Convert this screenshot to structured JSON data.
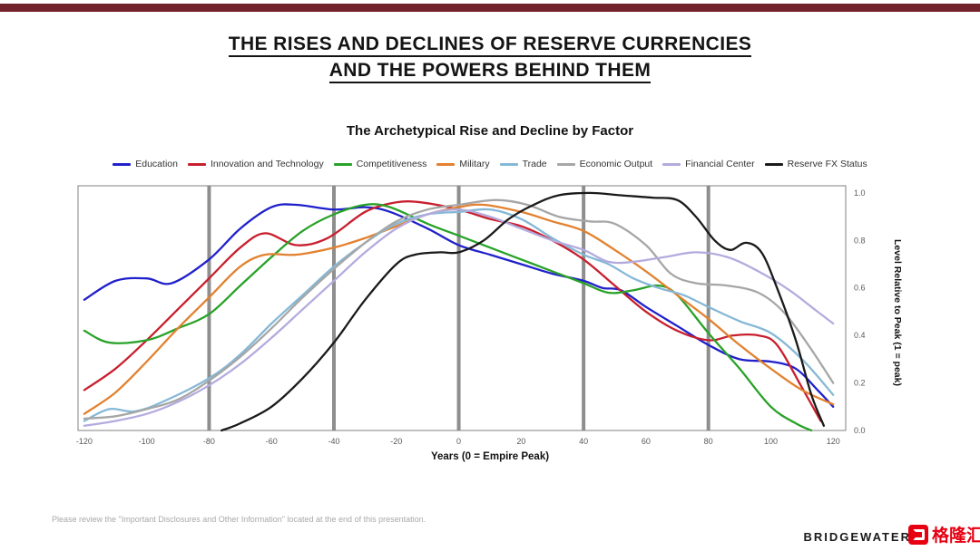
{
  "slide": {
    "title_line1": "THE RISES AND DECLINES OF RESERVE CURRENCIES",
    "title_line2": "AND THE POWERS BEHIND THEM",
    "footer": "Please review the \"Important Disclosures and Other Information\" located at the end of this presentation.",
    "brand": "BRIDGEWATER",
    "watermark": "格隆汇"
  },
  "chart_data": {
    "type": "line",
    "title": "The Archetypical Rise and Decline by Factor",
    "xlabel": "Years (0 = Empire Peak)",
    "ylabel": "Level Relative to Peak (1 = peak)",
    "xlim": [
      -122,
      124
    ],
    "ylim": [
      0,
      1.03
    ],
    "x_ticks": [
      -120,
      -100,
      -80,
      -60,
      -40,
      -20,
      0,
      20,
      40,
      60,
      80,
      100,
      120
    ],
    "y_ticks": [
      0.0,
      0.2,
      0.4,
      0.6,
      0.8,
      1.0
    ],
    "y_tick_labels": [
      "0.0",
      "0.2",
      "0.4",
      "0.6",
      "0.8",
      "1.0"
    ],
    "gridlines_x": [
      -80,
      -40,
      0,
      40,
      80
    ],
    "grid": "vertical-only",
    "legend_position": "top",
    "colors": {
      "gridline": "#8e8e8e",
      "plot_border": "#828282"
    },
    "series": [
      {
        "name": "Education",
        "color": "#2020cc",
        "points": [
          [
            -120,
            0.55
          ],
          [
            -110,
            0.63
          ],
          [
            -100,
            0.64
          ],
          [
            -92,
            0.62
          ],
          [
            -80,
            0.72
          ],
          [
            -70,
            0.85
          ],
          [
            -60,
            0.94
          ],
          [
            -52,
            0.95
          ],
          [
            -40,
            0.93
          ],
          [
            -30,
            0.94
          ],
          [
            -22,
            0.92
          ],
          [
            -10,
            0.85
          ],
          [
            0,
            0.78
          ],
          [
            10,
            0.74
          ],
          [
            20,
            0.7
          ],
          [
            30,
            0.66
          ],
          [
            40,
            0.63
          ],
          [
            46,
            0.6
          ],
          [
            52,
            0.59
          ],
          [
            60,
            0.52
          ],
          [
            70,
            0.44
          ],
          [
            80,
            0.36
          ],
          [
            90,
            0.3
          ],
          [
            100,
            0.29
          ],
          [
            108,
            0.26
          ],
          [
            115,
            0.17
          ],
          [
            120,
            0.1
          ]
        ]
      },
      {
        "name": "Innovation and Technology",
        "color": "#c81f2e",
        "points": [
          [
            -120,
            0.17
          ],
          [
            -110,
            0.26
          ],
          [
            -100,
            0.38
          ],
          [
            -90,
            0.51
          ],
          [
            -80,
            0.64
          ],
          [
            -70,
            0.77
          ],
          [
            -62,
            0.83
          ],
          [
            -52,
            0.78
          ],
          [
            -42,
            0.81
          ],
          [
            -30,
            0.92
          ],
          [
            -20,
            0.96
          ],
          [
            -12,
            0.96
          ],
          [
            0,
            0.93
          ],
          [
            10,
            0.89
          ],
          [
            20,
            0.86
          ],
          [
            30,
            0.8
          ],
          [
            40,
            0.72
          ],
          [
            50,
            0.61
          ],
          [
            60,
            0.5
          ],
          [
            70,
            0.42
          ],
          [
            80,
            0.38
          ],
          [
            88,
            0.4
          ],
          [
            96,
            0.4
          ],
          [
            102,
            0.36
          ],
          [
            110,
            0.18
          ],
          [
            116,
            0.04
          ]
        ]
      },
      {
        "name": "Competitiveness",
        "color": "#28a228",
        "points": [
          [
            -120,
            0.42
          ],
          [
            -112,
            0.37
          ],
          [
            -100,
            0.38
          ],
          [
            -90,
            0.43
          ],
          [
            -80,
            0.49
          ],
          [
            -70,
            0.61
          ],
          [
            -60,
            0.73
          ],
          [
            -50,
            0.84
          ],
          [
            -40,
            0.91
          ],
          [
            -30,
            0.95
          ],
          [
            -22,
            0.94
          ],
          [
            -10,
            0.87
          ],
          [
            0,
            0.82
          ],
          [
            10,
            0.77
          ],
          [
            20,
            0.72
          ],
          [
            30,
            0.67
          ],
          [
            40,
            0.62
          ],
          [
            48,
            0.58
          ],
          [
            56,
            0.59
          ],
          [
            64,
            0.61
          ],
          [
            70,
            0.57
          ],
          [
            80,
            0.41
          ],
          [
            90,
            0.26
          ],
          [
            100,
            0.1
          ],
          [
            108,
            0.03
          ],
          [
            113,
            0.0
          ]
        ]
      },
      {
        "name": "Military",
        "color": "#e2812f",
        "points": [
          [
            -120,
            0.07
          ],
          [
            -110,
            0.16
          ],
          [
            -100,
            0.29
          ],
          [
            -90,
            0.43
          ],
          [
            -80,
            0.56
          ],
          [
            -70,
            0.69
          ],
          [
            -62,
            0.74
          ],
          [
            -52,
            0.74
          ],
          [
            -40,
            0.77
          ],
          [
            -30,
            0.81
          ],
          [
            -20,
            0.86
          ],
          [
            -10,
            0.91
          ],
          [
            0,
            0.94
          ],
          [
            8,
            0.95
          ],
          [
            20,
            0.92
          ],
          [
            30,
            0.88
          ],
          [
            40,
            0.84
          ],
          [
            50,
            0.76
          ],
          [
            60,
            0.67
          ],
          [
            70,
            0.57
          ],
          [
            80,
            0.47
          ],
          [
            90,
            0.36
          ],
          [
            100,
            0.26
          ],
          [
            110,
            0.17
          ],
          [
            120,
            0.11
          ]
        ]
      },
      {
        "name": "Trade",
        "color": "#85b8d6",
        "points": [
          [
            -120,
            0.04
          ],
          [
            -112,
            0.09
          ],
          [
            -104,
            0.08
          ],
          [
            -95,
            0.12
          ],
          [
            -80,
            0.22
          ],
          [
            -70,
            0.32
          ],
          [
            -60,
            0.45
          ],
          [
            -50,
            0.57
          ],
          [
            -40,
            0.69
          ],
          [
            -30,
            0.79
          ],
          [
            -20,
            0.87
          ],
          [
            -10,
            0.91
          ],
          [
            0,
            0.92
          ],
          [
            10,
            0.93
          ],
          [
            20,
            0.89
          ],
          [
            30,
            0.81
          ],
          [
            40,
            0.74
          ],
          [
            48,
            0.7
          ],
          [
            56,
            0.64
          ],
          [
            64,
            0.6
          ],
          [
            72,
            0.57
          ],
          [
            80,
            0.52
          ],
          [
            90,
            0.46
          ],
          [
            100,
            0.41
          ],
          [
            110,
            0.3
          ],
          [
            120,
            0.15
          ]
        ]
      },
      {
        "name": "Economic Output",
        "color": "#a6a6a6",
        "points": [
          [
            -120,
            0.05
          ],
          [
            -110,
            0.06
          ],
          [
            -100,
            0.09
          ],
          [
            -90,
            0.13
          ],
          [
            -80,
            0.21
          ],
          [
            -70,
            0.31
          ],
          [
            -60,
            0.43
          ],
          [
            -50,
            0.56
          ],
          [
            -40,
            0.68
          ],
          [
            -30,
            0.79
          ],
          [
            -20,
            0.88
          ],
          [
            -10,
            0.93
          ],
          [
            0,
            0.95
          ],
          [
            12,
            0.97
          ],
          [
            22,
            0.95
          ],
          [
            32,
            0.9
          ],
          [
            42,
            0.88
          ],
          [
            50,
            0.87
          ],
          [
            60,
            0.78
          ],
          [
            68,
            0.66
          ],
          [
            76,
            0.62
          ],
          [
            86,
            0.61
          ],
          [
            96,
            0.58
          ],
          [
            104,
            0.5
          ],
          [
            112,
            0.36
          ],
          [
            120,
            0.2
          ]
        ]
      },
      {
        "name": "Financial Center",
        "color": "#b3abde",
        "points": [
          [
            -120,
            0.02
          ],
          [
            -110,
            0.04
          ],
          [
            -100,
            0.07
          ],
          [
            -90,
            0.12
          ],
          [
            -80,
            0.19
          ],
          [
            -70,
            0.28
          ],
          [
            -60,
            0.39
          ],
          [
            -50,
            0.51
          ],
          [
            -40,
            0.63
          ],
          [
            -30,
            0.75
          ],
          [
            -20,
            0.85
          ],
          [
            -10,
            0.91
          ],
          [
            0,
            0.93
          ],
          [
            10,
            0.9
          ],
          [
            20,
            0.85
          ],
          [
            30,
            0.8
          ],
          [
            40,
            0.76
          ],
          [
            48,
            0.71
          ],
          [
            56,
            0.71
          ],
          [
            66,
            0.73
          ],
          [
            76,
            0.75
          ],
          [
            86,
            0.73
          ],
          [
            96,
            0.67
          ],
          [
            106,
            0.59
          ],
          [
            114,
            0.51
          ],
          [
            120,
            0.45
          ]
        ]
      },
      {
        "name": "Reserve FX Status",
        "color": "#1a1a1a",
        "points": [
          [
            -76,
            0.0
          ],
          [
            -70,
            0.03
          ],
          [
            -60,
            0.1
          ],
          [
            -50,
            0.22
          ],
          [
            -40,
            0.37
          ],
          [
            -30,
            0.55
          ],
          [
            -20,
            0.7
          ],
          [
            -14,
            0.74
          ],
          [
            -6,
            0.75
          ],
          [
            0,
            0.75
          ],
          [
            8,
            0.8
          ],
          [
            16,
            0.89
          ],
          [
            24,
            0.95
          ],
          [
            32,
            0.99
          ],
          [
            42,
            1.0
          ],
          [
            52,
            0.99
          ],
          [
            62,
            0.98
          ],
          [
            70,
            0.97
          ],
          [
            76,
            0.9
          ],
          [
            82,
            0.8
          ],
          [
            87,
            0.76
          ],
          [
            92,
            0.79
          ],
          [
            97,
            0.75
          ],
          [
            102,
            0.6
          ],
          [
            108,
            0.38
          ],
          [
            113,
            0.15
          ],
          [
            117,
            0.02
          ]
        ]
      }
    ]
  }
}
